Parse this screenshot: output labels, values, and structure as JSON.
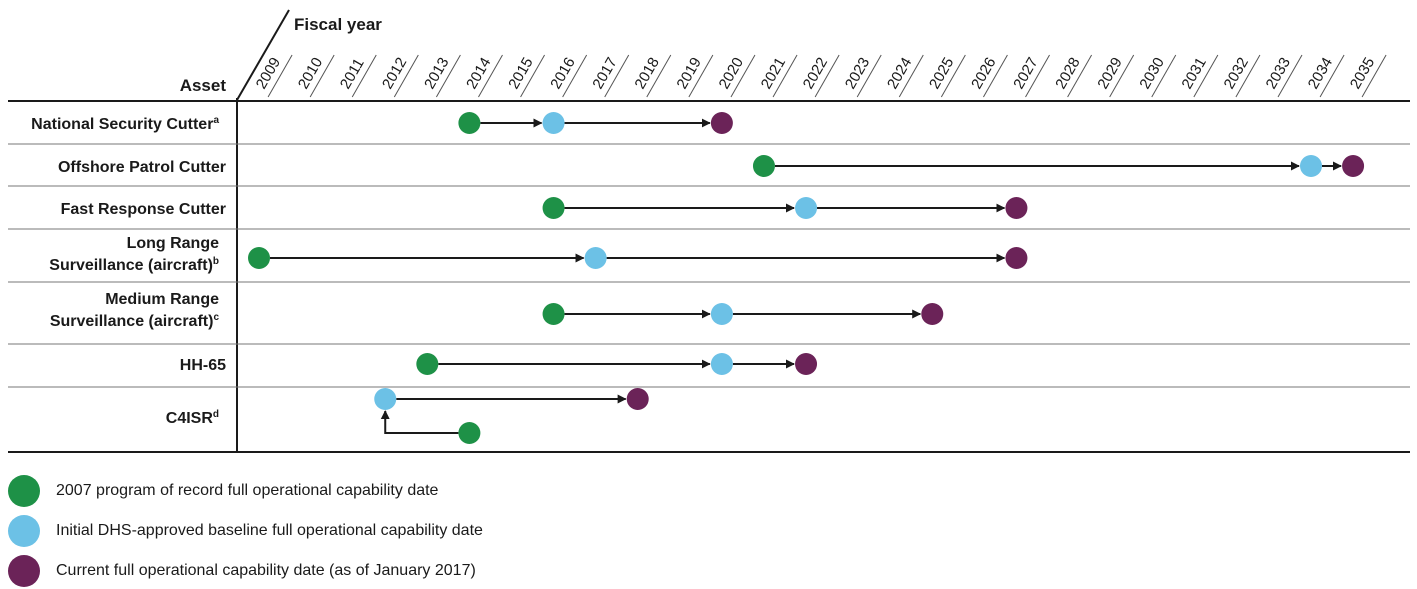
{
  "chart_data": {
    "type": "timeline",
    "header": {
      "fiscal_year_label": "Fiscal year",
      "asset_label": "Asset"
    },
    "years": [
      "2009",
      "2010",
      "2011",
      "2012",
      "2013",
      "2014",
      "2015",
      "2016",
      "2017",
      "2018",
      "2019",
      "2020",
      "2021",
      "2022",
      "2023",
      "2024",
      "2025",
      "2026",
      "2027",
      "2028",
      "2029",
      "2030",
      "2031",
      "2032",
      "2033",
      "2034",
      "2035"
    ],
    "colors": {
      "program_of_record": "#1e9147",
      "baseline": "#6cc1e6",
      "current": "#6b2358",
      "line": "#1a1a1a"
    },
    "rows": [
      {
        "label_lines": [
          "National Security Cutter"
        ],
        "note": "a",
        "program_of_record": 2014,
        "baseline": 2016,
        "current": 2020
      },
      {
        "label_lines": [
          "Offshore Patrol Cutter"
        ],
        "note": "",
        "program_of_record": 2021,
        "baseline": 2034,
        "current": 2035
      },
      {
        "label_lines": [
          "Fast Response Cutter"
        ],
        "note": "",
        "program_of_record": 2016,
        "baseline": 2022,
        "current": 2027
      },
      {
        "label_lines": [
          "Long Range",
          "Surveillance (aircraft)"
        ],
        "note": "b",
        "program_of_record": 2009,
        "baseline": 2017,
        "current": 2027
      },
      {
        "label_lines": [
          "Medium Range",
          "Surveillance (aircraft)"
        ],
        "note": "c",
        "program_of_record": 2016,
        "baseline": 2020,
        "current": 2025
      },
      {
        "label_lines": [
          "HH-65"
        ],
        "note": "",
        "program_of_record": 2013,
        "baseline": 2020,
        "current": 2022
      },
      {
        "label_lines": [
          "C4ISR"
        ],
        "note": "d",
        "program_of_record": 2014,
        "baseline": 2012,
        "current": 2018
      }
    ]
  },
  "legend": [
    {
      "key": "program_of_record",
      "label": "2007 program of record full operational capability date"
    },
    {
      "key": "baseline",
      "label": "Initial DHS-approved baseline full operational capability date"
    },
    {
      "key": "current",
      "label": "Current full operational capability date (as of January 2017)"
    }
  ]
}
